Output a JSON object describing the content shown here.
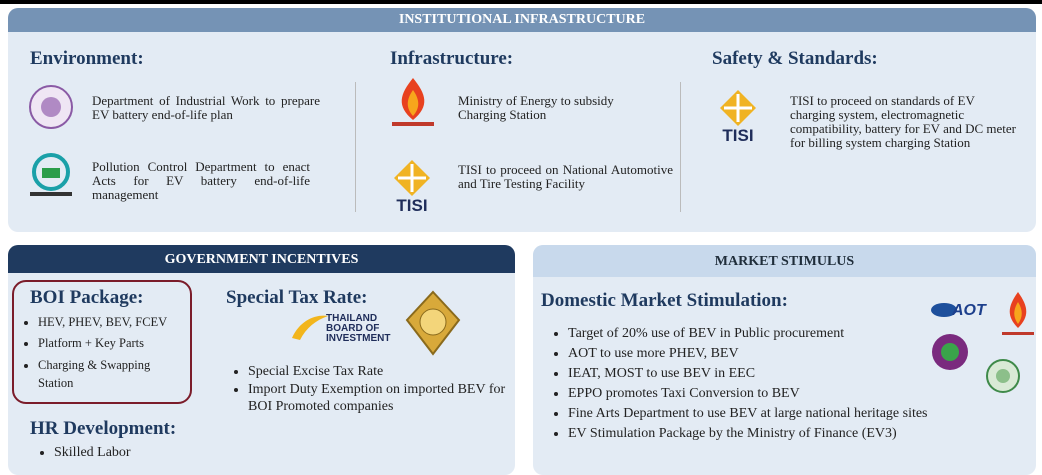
{
  "institutional": {
    "title": "INSTITUTIONAL INFRASTRUCTURE",
    "columns": [
      {
        "heading": "Environment:",
        "items": [
          "Department of Industrial Work to prepare EV battery end-of-life plan",
          "Pollution Control Department to enact Acts for EV battery end-of-life management"
        ]
      },
      {
        "heading": "Infrastructure:",
        "items": [
          "Ministry of Energy to subsidy Charging Station",
          "TISI to proceed on National Automotive and Tire Testing Facility"
        ]
      },
      {
        "heading": "Safety & Standards:",
        "items": [
          "TISI to proceed on standards of EV charging system, electromagnetic compatibility, battery for EV and DC meter for billing system charging Station"
        ]
      }
    ],
    "logo_tisi": "TISI"
  },
  "incentives": {
    "title": "GOVERNMENT INCENTIVES",
    "boi": {
      "heading": "BOI Package:",
      "items": [
        "HEV, PHEV, BEV, FCEV",
        "Platform + Key Parts",
        "Charging & Swapping Station"
      ]
    },
    "tax": {
      "heading": "Special Tax Rate:",
      "items": [
        "Special Excise Tax Rate",
        "Import Duty Exemption on imported BEV for BOI Promoted companies"
      ]
    },
    "boi_logo": [
      "THAILAND",
      "BOARD OF",
      "INVESTMENT"
    ],
    "hr": {
      "heading": "HR Development:",
      "items": [
        "Skilled Labor"
      ]
    }
  },
  "market": {
    "title": "MARKET STIMULUS",
    "heading": "Domestic Market Stimulation:",
    "items": [
      "Target of 20% use of BEV in Public procurement",
      "AOT to use more PHEV, BEV",
      "IEAT, MOST to use BEV in EEC",
      "EPPO promotes Taxi Conversion to BEV",
      "Fine Arts Department to use BEV at large national heritage sites",
      "EV Stimulation Package by the Ministry of Finance (EV3)"
    ],
    "logo_aot": "AOT"
  }
}
